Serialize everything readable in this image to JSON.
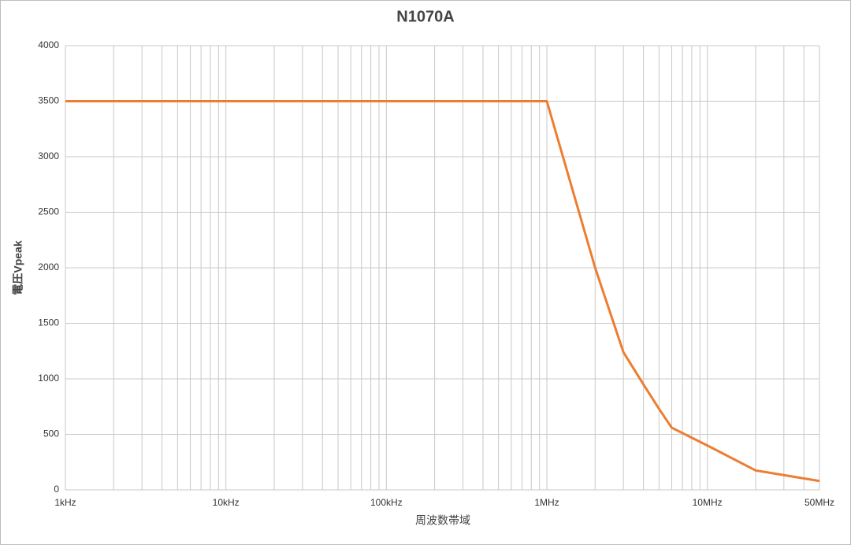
{
  "chart_data": {
    "type": "line",
    "title": "N1070A",
    "x_label": "周波数帯域",
    "y_label": "電圧Vpeak",
    "x": [
      1000,
      1000000,
      2000000,
      3000000,
      4000000,
      5000000,
      6000000,
      8000000,
      10000000,
      20000000,
      50000000
    ],
    "series": [
      {
        "name": "N1070A",
        "color": "#ed7d31",
        "values": [
          3500,
          3500,
          2000,
          1240,
          950,
          730,
          560,
          470,
          400,
          175,
          80
        ]
      }
    ],
    "xscale": "log",
    "xlim": [
      1000,
      50000000
    ],
    "xticks": [
      {
        "value": 1000,
        "label": "1kHz"
      },
      {
        "value": 10000,
        "label": "10kHz"
      },
      {
        "value": 100000,
        "label": "100kHz"
      },
      {
        "value": 1000000,
        "label": "1MHz"
      },
      {
        "value": 10000000,
        "label": "10MHz"
      },
      {
        "value": 50000000,
        "label": "50MHz"
      }
    ],
    "ylim": [
      0,
      4000
    ],
    "yticks": [
      0,
      500,
      1000,
      1500,
      2000,
      2500,
      3000,
      3500,
      4000
    ],
    "grid": true,
    "minor_grid": true
  }
}
